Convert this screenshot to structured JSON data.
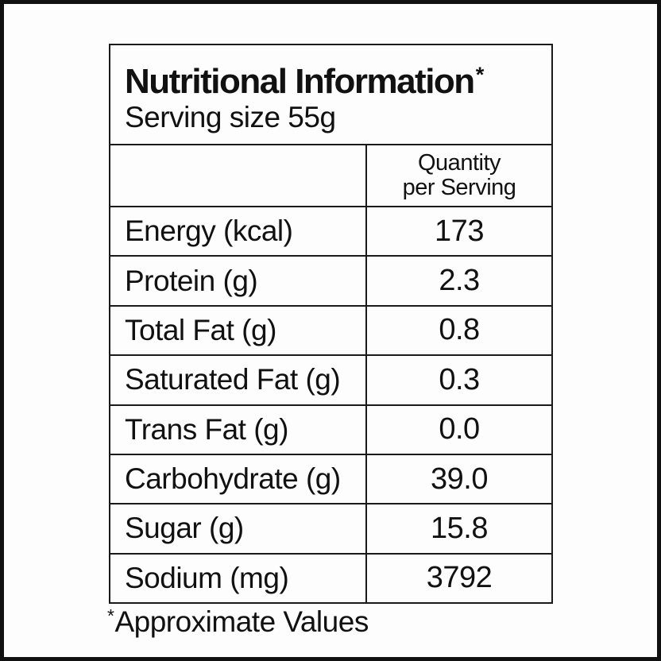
{
  "table": {
    "title": "Nutritional Information",
    "title_asterisk": "*",
    "serving_size": "Serving size 55g",
    "quantity_header": {
      "line1": "Quantity",
      "line2": "per Serving"
    },
    "rows": [
      {
        "label": "Energy (kcal)",
        "value": "173"
      },
      {
        "label": "Protein (g)",
        "value": "2.3"
      },
      {
        "label": "Total Fat (g)",
        "value": "0.8"
      },
      {
        "label": "Saturated Fat (g)",
        "value": "0.3"
      },
      {
        "label": "Trans Fat (g)",
        "value": "0.0"
      },
      {
        "label": "Carbohydrate (g)",
        "value": "39.0"
      },
      {
        "label": "Sugar (g)",
        "value": "15.8"
      },
      {
        "label": "Sodium (mg)",
        "value": "3792"
      }
    ],
    "footnote_asterisk": "*",
    "footnote_text": "Approximate Values"
  },
  "colors": {
    "background": "#fdfdfd",
    "border": "#1a1a1a",
    "text": "#111111"
  }
}
